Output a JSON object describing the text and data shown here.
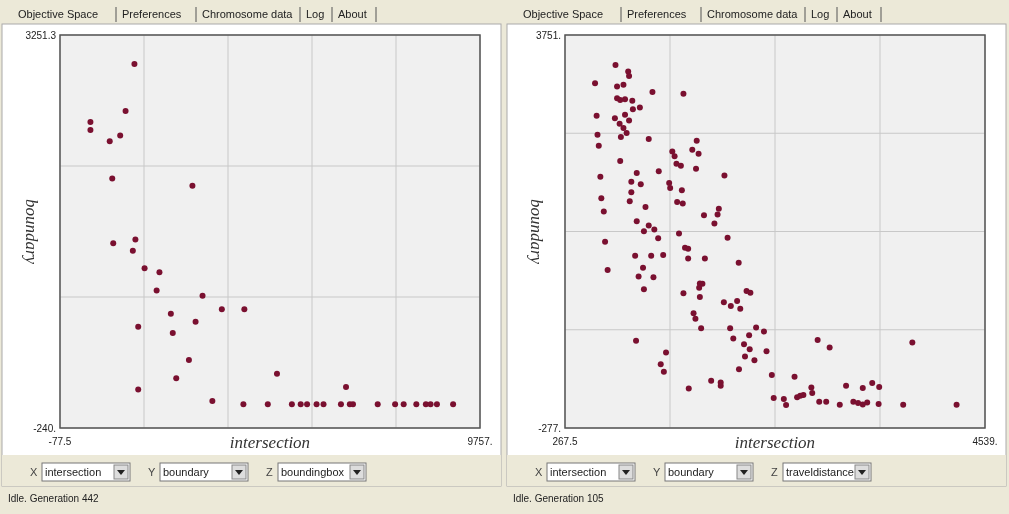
{
  "chart_data": [
    {
      "type": "scatter",
      "xlabel": "intersection",
      "ylabel": "boundary",
      "color": "#7a1030",
      "marker": "circle",
      "grid": true,
      "xlim": [
        -77.5,
        9757
      ],
      "ylim": [
        -240,
        3251.3
      ],
      "xticks": [
        {
          "value": -77.5,
          "label": "-77.5"
        },
        {
          "value": 1889.4,
          "label": null
        },
        {
          "value": 3856.3,
          "label": null
        },
        {
          "value": 5823.2,
          "label": null
        },
        {
          "value": 7790.1,
          "label": null
        },
        {
          "value": 9757,
          "label": "9757."
        }
      ],
      "yticks": [
        {
          "value": -240,
          "label": "-240."
        },
        {
          "value": 923.7,
          "label": null
        },
        {
          "value": 2087.5,
          "label": null
        },
        {
          "value": 3251.3,
          "label": "3251.3"
        }
      ],
      "x": [
        1665,
        1458,
        635,
        635,
        1332,
        1087,
        1146,
        3023,
        1169,
        1688,
        1628,
        1903,
        2251,
        2185,
        3260,
        2518,
        3712,
        4239,
        1754,
        3097,
        2563,
        2941,
        5003,
        2644,
        1754,
        6620,
        3490,
        4217,
        4788,
        5352,
        5559,
        5708,
        5930,
        6093,
        6501,
        6709,
        6783,
        7362,
        7769,
        7970,
        8266,
        8489,
        8600,
        8748,
        9127
      ],
      "values": [
        2994,
        2577,
        2479,
        2408,
        2358,
        2307,
        1976,
        1911,
        1402,
        1434,
        1334,
        1180,
        1144,
        982,
        934,
        775,
        816,
        816,
        659,
        704,
        603,
        363,
        242,
        201,
        103,
        124,
        -1,
        -30,
        -30,
        -30,
        -30,
        -30,
        -30,
        -30,
        -30,
        -30,
        -30,
        -30,
        -30,
        -30,
        -30,
        -30,
        -30,
        -30,
        -30
      ],
      "annotations": [
        "Objective Space",
        "Preferences",
        "Chromosome data",
        "Log",
        "About",
        "X",
        "intersection",
        "Y",
        "boundary",
        "Z",
        "boundingbox",
        "Idle.  Generation 442"
      ]
    },
    {
      "type": "scatter",
      "xlabel": "intersection",
      "ylabel": "boundary",
      "color": "#7a1030",
      "marker": "circle",
      "grid": true,
      "xlim": [
        267.5,
        4539
      ],
      "ylim": [
        -277,
        3751
      ],
      "xticks": [
        {
          "value": 267.5,
          "label": "267.5"
        },
        {
          "value": 1335.4,
          "label": null
        },
        {
          "value": 2403.3,
          "label": null
        },
        {
          "value": 3471.1,
          "label": null
        },
        {
          "value": 4539,
          "label": "4539."
        }
      ],
      "yticks": [
        {
          "value": -277,
          "label": "-277."
        },
        {
          "value": 730,
          "label": null
        },
        {
          "value": 1737,
          "label": null
        },
        {
          "value": 2744,
          "label": null
        },
        {
          "value": 3751,
          "label": "3751."
        }
      ],
      "x": [
        781,
        910,
        919,
        573,
        797,
        862,
        1157,
        1472,
        797,
        829,
        878,
        952,
        1029,
        958,
        589,
        775,
        878,
        823,
        919,
        862,
        894,
        598,
        836,
        1119,
        611,
        1607,
        1562,
        1626,
        1359,
        1382,
        1401,
        1446,
        1600,
        829,
        1889,
        1221,
        997,
        942,
        1038,
        1327,
        1337,
        1456,
        627,
        637,
        942,
        926,
        1086,
        662,
        1408,
        1465,
        1681,
        1832,
        1819,
        1787,
        997,
        1119,
        1176,
        1070,
        1215,
        1427,
        1921,
        675,
        1488,
        1520,
        981,
        1144,
        1266,
        1520,
        1690,
        2034,
        1061,
        701,
        1016,
        1167,
        1070,
        1639,
        1665,
        1632,
        2114,
        2153,
        1472,
        1639,
        1883,
        1954,
        2018,
        2050,
        1575,
        1594,
        1652,
        1947,
        2211,
        2291,
        2140,
        1979,
        990,
        2837,
        2959,
        3800,
        1295,
        2088,
        2146,
        2317,
        2098,
        2194,
        1241,
        1273,
        2037,
        2371,
        2602,
        1754,
        1851,
        1851,
        1526,
        2773,
        3126,
        3296,
        3392,
        3463,
        2390,
        2493,
        2516,
        2628,
        2660,
        2692,
        2782,
        2853,
        2924,
        3062,
        3200,
        3248,
        3296,
        3341,
        3457,
        3707,
        4250
      ],
      "values": [
        3444,
        3376,
        3332,
        3257,
        3223,
        3240,
        3168,
        3148,
        3104,
        3086,
        3093,
        3076,
        3008,
        2991,
        2923,
        2899,
        2933,
        2841,
        2875,
        2797,
        2746,
        2729,
        2705,
        2684,
        2616,
        2667,
        2575,
        2534,
        2558,
        2507,
        2432,
        2412,
        2381,
        2459,
        2310,
        2354,
        2337,
        2248,
        2221,
        2235,
        2183,
        2160,
        2299,
        2078,
        2139,
        2047,
        1989,
        1941,
        2040,
        2023,
        1904,
        1969,
        1911,
        1819,
        1843,
        1798,
        1757,
        1740,
        1669,
        1717,
        1672,
        1631,
        1570,
        1560,
        1488,
        1488,
        1495,
        1461,
        1461,
        1417,
        1366,
        1342,
        1277,
        1267,
        1144,
        1205,
        1202,
        1161,
        1127,
        1110,
        1103,
        1066,
        1011,
        974,
        1025,
        946,
        899,
        844,
        745,
        745,
        752,
        711,
        674,
        640,
        616,
        626,
        548,
        599,
        497,
        582,
        531,
        510,
        456,
        418,
        377,
        299,
        326,
        265,
        248,
        207,
        190,
        156,
        129,
        139,
        156,
        132,
        183,
        142,
        30,
        19,
        -42,
        37,
        54,
        60,
        81,
        -8,
        -8,
        -39,
        -8,
        -21,
        -35,
        -15,
        -32,
        -39,
        -39
      ],
      "annotations": [
        "Objective Space",
        "Preferences",
        "Chromosome data",
        "Log",
        "About",
        "X",
        "intersection",
        "Y",
        "boundary",
        "Z",
        "traveldistance",
        "Idle.  Generation 105"
      ]
    }
  ]
}
